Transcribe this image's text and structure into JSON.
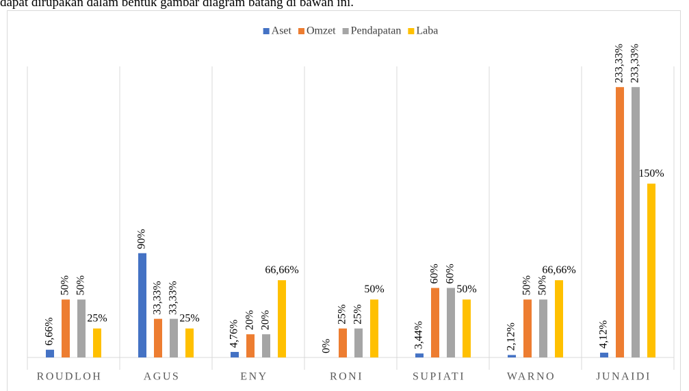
{
  "caption": "dapat dirupakan dalam bentuk gambar diagram batang di bawah ini.",
  "chart_data": {
    "type": "bar",
    "categories": [
      "ROUDLOH",
      "AGUS",
      "ENY",
      "RONI",
      "SUPIATI",
      "WARNO",
      "JUNAIDI"
    ],
    "series": [
      {
        "name": "Aset",
        "color": "#4472c4",
        "values": [
          6.66,
          90,
          4.76,
          0,
          3.44,
          2.12,
          4.12
        ],
        "value_labels": [
          "6,66%",
          "90%",
          "4,76%",
          "0%",
          "3,44%",
          "2,12%",
          "4,12%"
        ]
      },
      {
        "name": "Omzet",
        "color": "#ed7d31",
        "values": [
          50,
          33.33,
          20,
          25,
          60,
          50,
          233.33
        ],
        "value_labels": [
          "50%",
          "33,33%",
          "20%",
          "25%",
          "60%",
          "50%",
          "233,33%"
        ]
      },
      {
        "name": "Pendapatan",
        "color": "#a5a5a5",
        "values": [
          50,
          33.33,
          20,
          25,
          60,
          50,
          233.33
        ],
        "value_labels": [
          "50%",
          "33,33%",
          "20%",
          "25%",
          "60%",
          "50%",
          "233,33%"
        ]
      },
      {
        "name": "Laba",
        "color": "#ffc000",
        "values": [
          25,
          25,
          66.66,
          50,
          50,
          66.66,
          150
        ],
        "value_labels": [
          "25%",
          "25%",
          "66,66%",
          "50%",
          "50%",
          "66,66%",
          "150%"
        ]
      }
    ],
    "ylim": [
      0,
      250
    ],
    "legend": "top"
  }
}
